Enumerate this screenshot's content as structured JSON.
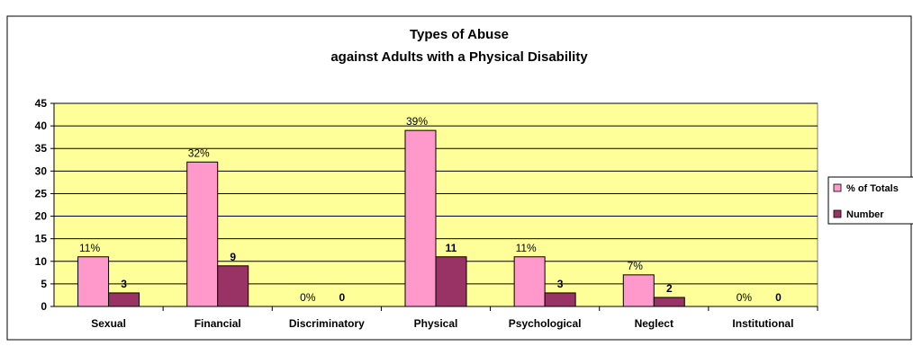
{
  "chart_data": {
    "type": "bar",
    "title": "Types of Abuse",
    "subtitle": "against Adults with a Physical Disability",
    "categories": [
      "Sexual",
      "Financial",
      "Discriminatory",
      "Physical",
      "Psychological",
      "Neglect",
      "Institutional"
    ],
    "series": [
      {
        "name": "% of Totals",
        "values": [
          11,
          32,
          0,
          39,
          11,
          7,
          0
        ],
        "labels": [
          "11%",
          "32%",
          "0%",
          "39%",
          "11%",
          "7%",
          "0%"
        ],
        "color": "#ff99cc"
      },
      {
        "name": "Number",
        "values": [
          3,
          9,
          0,
          11,
          3,
          2,
          0
        ],
        "labels": [
          "3",
          "9",
          "0",
          "11",
          "3",
          "2",
          "0"
        ],
        "color": "#993366"
      }
    ],
    "yticks": [
      "0",
      "5",
      "10",
      "15",
      "20",
      "25",
      "30",
      "35",
      "40",
      "45"
    ],
    "ylim": [
      0,
      45
    ],
    "plot_background": "#ffff99",
    "grid": true,
    "legend_position": "right"
  }
}
